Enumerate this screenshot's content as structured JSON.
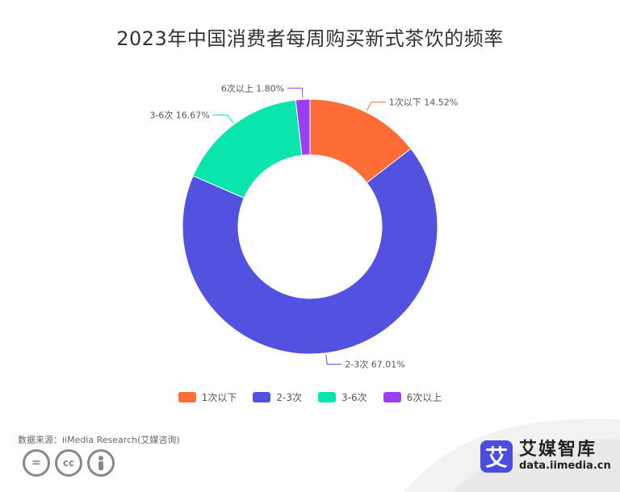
{
  "chart_data": {
    "type": "pie",
    "title": "2023年中国消费者每周购买新式茶饮的频率",
    "categories": [
      "1次以下",
      "2-3次",
      "3-6次",
      "6次以上"
    ],
    "values": [
      14.52,
      67.01,
      16.67,
      1.8
    ],
    "value_labels": [
      "1次以下 14.52%",
      "2-3次 67.01%",
      "3-6次 16.67%",
      "6次以上 1.80%"
    ],
    "colors": [
      "#fd6d35",
      "#5251e0",
      "#0ae4ad",
      "#9a3ef2"
    ],
    "donut": true,
    "legend_position": "bottom"
  },
  "footer": {
    "source": "数据来源：iiMedia Research(艾媒咨询)",
    "brand_logo_char": "艾",
    "brand_name": "艾媒智库",
    "brand_url": "data.iimedia.cn",
    "license_icons": [
      "equals-icon",
      "cc-icon",
      "person-icon"
    ]
  }
}
